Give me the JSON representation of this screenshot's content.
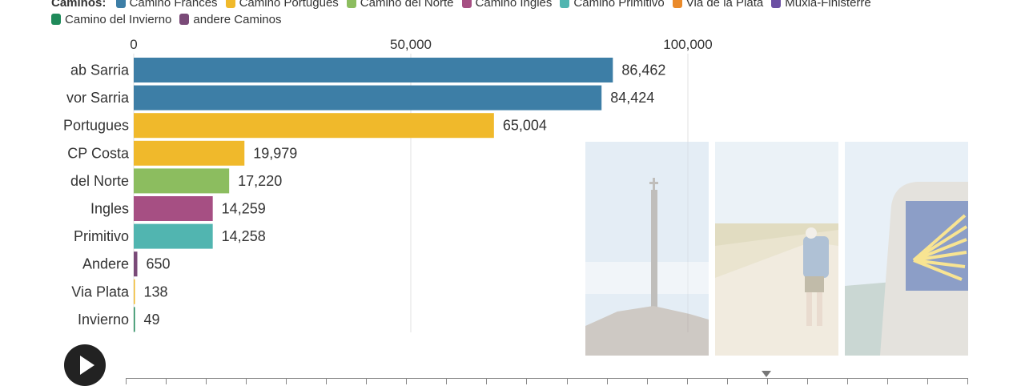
{
  "legend": {
    "title": "Caminos:",
    "items": [
      {
        "label": "Camino Frances",
        "color": "#3d7ea6"
      },
      {
        "label": "Camino Portugues",
        "color": "#f0b92b"
      },
      {
        "label": "Camino del Norte",
        "color": "#8cbd5f"
      },
      {
        "label": "Camino Ingles",
        "color": "#a64f83"
      },
      {
        "label": "Camino Primitivo",
        "color": "#51b5b0"
      },
      {
        "label": "Via de la Plata",
        "color": "#ea8a2a"
      },
      {
        "label": "Muxia-Finisterre",
        "color": "#6b4fa3"
      },
      {
        "label": "Camino del Invierno",
        "color": "#1f8a5a"
      },
      {
        "label": "andere Caminos",
        "color": "#7a4a78"
      }
    ]
  },
  "chart_data": {
    "type": "bar",
    "orientation": "horizontal",
    "categories": [
      "ab Sarria",
      "vor Sarria",
      "Portugues",
      "CP Costa",
      "del Norte",
      "Ingles",
      "Primitivo",
      "Andere",
      "Via Plata",
      "Invierno"
    ],
    "values": [
      86462,
      84424,
      65004,
      19979,
      17220,
      14259,
      14258,
      650,
      138,
      49
    ],
    "value_labels": [
      "86,462",
      "84,424",
      "65,004",
      "19,979",
      "17,220",
      "14,259",
      "14,258",
      "650",
      "138",
      "49"
    ],
    "colors": [
      "#3d7ea6",
      "#3d7ea6",
      "#f0b92b",
      "#f0b92b",
      "#8cbd5f",
      "#a64f83",
      "#51b5b0",
      "#7a4a78",
      "#f0b92b",
      "#1f8a5a"
    ],
    "x_ticks": [
      0,
      50000,
      100000
    ],
    "x_tick_labels": [
      "0",
      "50,000",
      "100,000"
    ],
    "xlim": [
      0,
      100000
    ],
    "grid": true,
    "axis_position": "top"
  },
  "photos": [
    {
      "name": "stone-cross-photo",
      "sky": "#cfe0ee",
      "ground": "#b8aea3"
    },
    {
      "name": "pilgrim-photo",
      "sky": "#dce8f2",
      "ground": "#d9d0b4"
    },
    {
      "name": "scallop-marker-photo",
      "sky": "#d6e5f1",
      "ground": "#b9c9cf"
    }
  ],
  "timeline": {
    "tick_count": 22,
    "position": 0.76
  }
}
